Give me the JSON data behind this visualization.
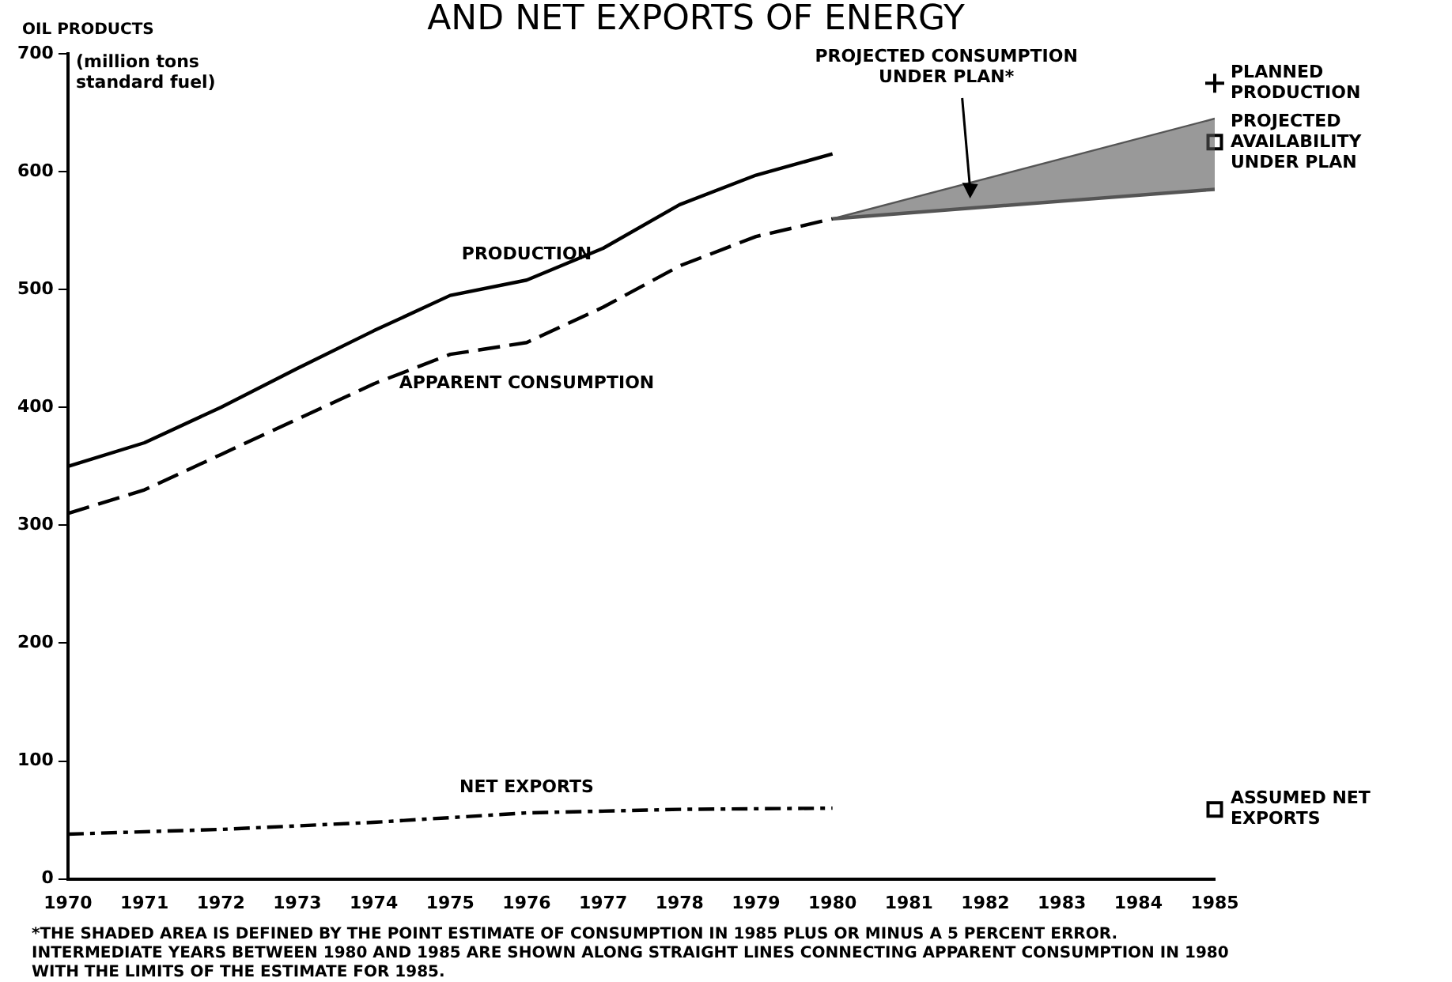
{
  "chart_data": {
    "type": "line",
    "title": "AND NET EXPORTS OF ENERGY",
    "ylabel": "(million tons standard fuel)",
    "xlim": [
      1970,
      1985
    ],
    "xticks": [
      1970,
      1971,
      1972,
      1973,
      1974,
      1975,
      1976,
      1977,
      1978,
      1979,
      1980,
      1981,
      1982,
      1983,
      1984,
      1985
    ],
    "ylim": [
      0,
      700
    ],
    "yticks": [
      0,
      100,
      200,
      300,
      400,
      500,
      600,
      700
    ],
    "grid": false,
    "legend": false,
    "series": [
      {
        "name": "PRODUCTION",
        "line_style": "solid",
        "color": "#000000",
        "x": [
          1970,
          1971,
          1972,
          1973,
          1974,
          1975,
          1976,
          1977,
          1978,
          1979,
          1980
        ],
        "values": [
          350,
          370,
          400,
          433,
          465,
          495,
          508,
          535,
          572,
          597,
          615
        ]
      },
      {
        "name": "APPARENT CONSUMPTION",
        "line_style": "dashed",
        "color": "#000000",
        "x": [
          1970,
          1971,
          1972,
          1973,
          1974,
          1975,
          1976,
          1977,
          1978,
          1979,
          1980
        ],
        "values": [
          310,
          330,
          360,
          390,
          420,
          445,
          455,
          485,
          520,
          545,
          560
        ]
      },
      {
        "name": "NET EXPORTS",
        "line_style": "dotted",
        "color": "#000000",
        "x": [
          1970,
          1972,
          1974,
          1976,
          1978,
          1980
        ],
        "values": [
          38,
          42,
          48,
          56,
          59,
          60
        ]
      },
      {
        "type": "line",
        "line_style": "solid",
        "color": "#555555",
        "x": [
          1980,
          1985
        ],
        "values": [
          560,
          585
        ]
      },
      {
        "type": "area",
        "color": "#555555",
        "x": [
          1980,
          1985
        ],
        "values": [
          560,
          645
        ]
      },
      {
        "name": "PLANNED PRODUCTION",
        "type": "scatter",
        "marker": "cross",
        "color": "#000000",
        "x": [
          1985
        ],
        "values": [
          675
        ]
      },
      {
        "name": "PROJECTED AVAILABILITY UNDER PLAN",
        "type": "scatter",
        "marker": "square",
        "color": "#000000",
        "x": [
          1985
        ],
        "values": [
          625
        ]
      },
      {
        "name": "ASSUMED NET EXPORTS",
        "type": "scatter",
        "marker": "square",
        "color": "#000000",
        "x": [
          1985
        ],
        "values": [
          59
        ]
      }
    ],
    "annotations": [
      "OIL PRODUCTS",
      "PROJECTED CONSUMPTION UNDER PLAN*",
      "*THE SHADED AREA IS DEFINED BY THE POINT ESTIMATE OF CONSUMPTION IN 1985 PLUS OR MINUS A 5 PERCENT ERROR. INTERMEDIATE YEARS BETWEEN 1980 AND 1985 ARE SHOWN ALONG STRAIGHT LINES CONNECTING APPARENT CONSUMPTION IN 1980 WITH THE LIMITS OF THE ESTIMATE FOR 1985."
    ]
  }
}
